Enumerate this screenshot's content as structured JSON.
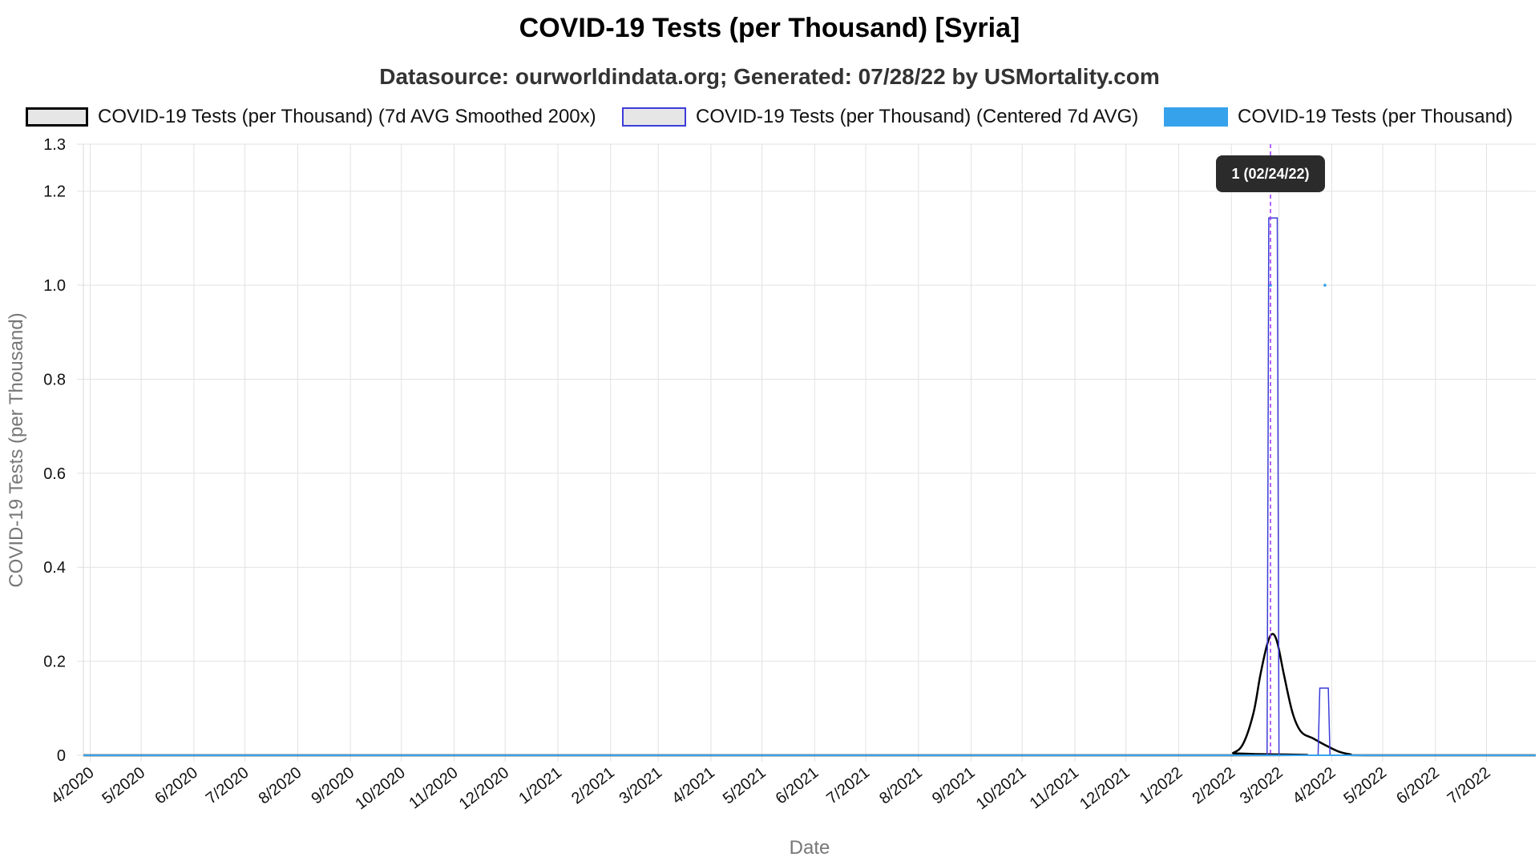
{
  "chart_data": {
    "type": "line",
    "title": "COVID-19 Tests (per Thousand) [Syria]",
    "subtitle": "Datasource: ourworldindata.org; Generated: 07/28/22 by USMortality.com",
    "xlabel": "Date",
    "ylabel": "COVID-19 Tests (per Thousand)",
    "ylim": [
      0,
      1.3
    ],
    "yticks": [
      "0",
      "0.2",
      "0.4",
      "0.6",
      "0.8",
      "1.0",
      "1.2",
      "1.3"
    ],
    "xlim": [
      "2020-03-28",
      "2022-07-30"
    ],
    "xticks": [
      {
        "date": "2020-04-01",
        "label": "4/2020"
      },
      {
        "date": "2020-05-01",
        "label": "5/2020"
      },
      {
        "date": "2020-06-01",
        "label": "6/2020"
      },
      {
        "date": "2020-07-01",
        "label": "7/2020"
      },
      {
        "date": "2020-08-01",
        "label": "8/2020"
      },
      {
        "date": "2020-09-01",
        "label": "9/2020"
      },
      {
        "date": "2020-10-01",
        "label": "10/2020"
      },
      {
        "date": "2020-11-01",
        "label": "11/2020"
      },
      {
        "date": "2020-12-01",
        "label": "12/2020"
      },
      {
        "date": "2021-01-01",
        "label": "1/2021"
      },
      {
        "date": "2021-02-01",
        "label": "2/2021"
      },
      {
        "date": "2021-03-01",
        "label": "3/2021"
      },
      {
        "date": "2021-04-01",
        "label": "4/2021"
      },
      {
        "date": "2021-05-01",
        "label": "5/2021"
      },
      {
        "date": "2021-06-01",
        "label": "6/2021"
      },
      {
        "date": "2021-07-01",
        "label": "7/2021"
      },
      {
        "date": "2021-08-01",
        "label": "8/2021"
      },
      {
        "date": "2021-09-01",
        "label": "9/2021"
      },
      {
        "date": "2021-10-01",
        "label": "10/2021"
      },
      {
        "date": "2021-11-01",
        "label": "11/2021"
      },
      {
        "date": "2021-12-01",
        "label": "12/2021"
      },
      {
        "date": "2022-01-01",
        "label": "1/2022"
      },
      {
        "date": "2022-02-01",
        "label": "2/2022"
      },
      {
        "date": "2022-03-01",
        "label": "3/2022"
      },
      {
        "date": "2022-04-01",
        "label": "4/2022"
      },
      {
        "date": "2022-05-01",
        "label": "5/2022"
      },
      {
        "date": "2022-06-01",
        "label": "6/2022"
      },
      {
        "date": "2022-07-01",
        "label": "7/2022"
      }
    ],
    "grid": true,
    "legend_position": "top",
    "series": [
      {
        "name": "COVID-19 Tests (per Thousand) (7d AVG Smoothed 200x)",
        "color": "#000000",
        "fill": "#e6e6e6",
        "style": "smooth-line",
        "points": [
          {
            "x": "2020-03-28",
            "y": 0
          },
          {
            "x": "2022-01-25",
            "y": 0
          },
          {
            "x": "2022-02-02",
            "y": 0.005
          },
          {
            "x": "2022-02-08",
            "y": 0.025
          },
          {
            "x": "2022-02-14",
            "y": 0.09
          },
          {
            "x": "2022-02-18",
            "y": 0.17
          },
          {
            "x": "2022-02-22",
            "y": 0.235
          },
          {
            "x": "2022-02-25",
            "y": 0.258
          },
          {
            "x": "2022-02-28",
            "y": 0.24
          },
          {
            "x": "2022-03-04",
            "y": 0.17
          },
          {
            "x": "2022-03-09",
            "y": 0.09
          },
          {
            "x": "2022-03-14",
            "y": 0.05
          },
          {
            "x": "2022-03-21",
            "y": 0.036
          },
          {
            "x": "2022-03-28",
            "y": 0.022
          },
          {
            "x": "2022-04-05",
            "y": 0.008
          },
          {
            "x": "2022-04-12",
            "y": 0.002
          },
          {
            "x": "2022-04-20",
            "y": 0
          },
          {
            "x": "2022-07-30",
            "y": 0
          }
        ]
      },
      {
        "name": "COVID-19 Tests (per Thousand) (Centered 7d AVG)",
        "color": "#3c3cd8",
        "fill": "#e6e6e6",
        "style": "line",
        "points": [
          {
            "x": "2020-03-28",
            "y": 0
          },
          {
            "x": "2022-02-22",
            "y": 0
          },
          {
            "x": "2022-02-23",
            "y": 1.143
          },
          {
            "x": "2022-02-28",
            "y": 1.143
          },
          {
            "x": "2022-03-01",
            "y": 0
          },
          {
            "x": "2022-03-24",
            "y": 0
          },
          {
            "x": "2022-03-25",
            "y": 0.143
          },
          {
            "x": "2022-03-30",
            "y": 0.143
          },
          {
            "x": "2022-03-31",
            "y": 0
          },
          {
            "x": "2022-07-30",
            "y": 0
          }
        ]
      },
      {
        "name": "COVID-19 Tests (per Thousand)",
        "color": "#36a2eb",
        "style": "points",
        "points": [
          {
            "x": "2020-03-28",
            "y": 0
          },
          {
            "x": "2022-02-24",
            "y": 1
          },
          {
            "x": "2022-03-28",
            "y": 1
          },
          {
            "x": "2022-07-30",
            "y": 0
          }
        ]
      }
    ],
    "annotations": [
      {
        "type": "vertical-line",
        "x": "2022-02-24",
        "color": "#9b30ff"
      },
      {
        "type": "tooltip",
        "x": "2022-02-24",
        "text": "1 (02/24/22)"
      }
    ]
  }
}
